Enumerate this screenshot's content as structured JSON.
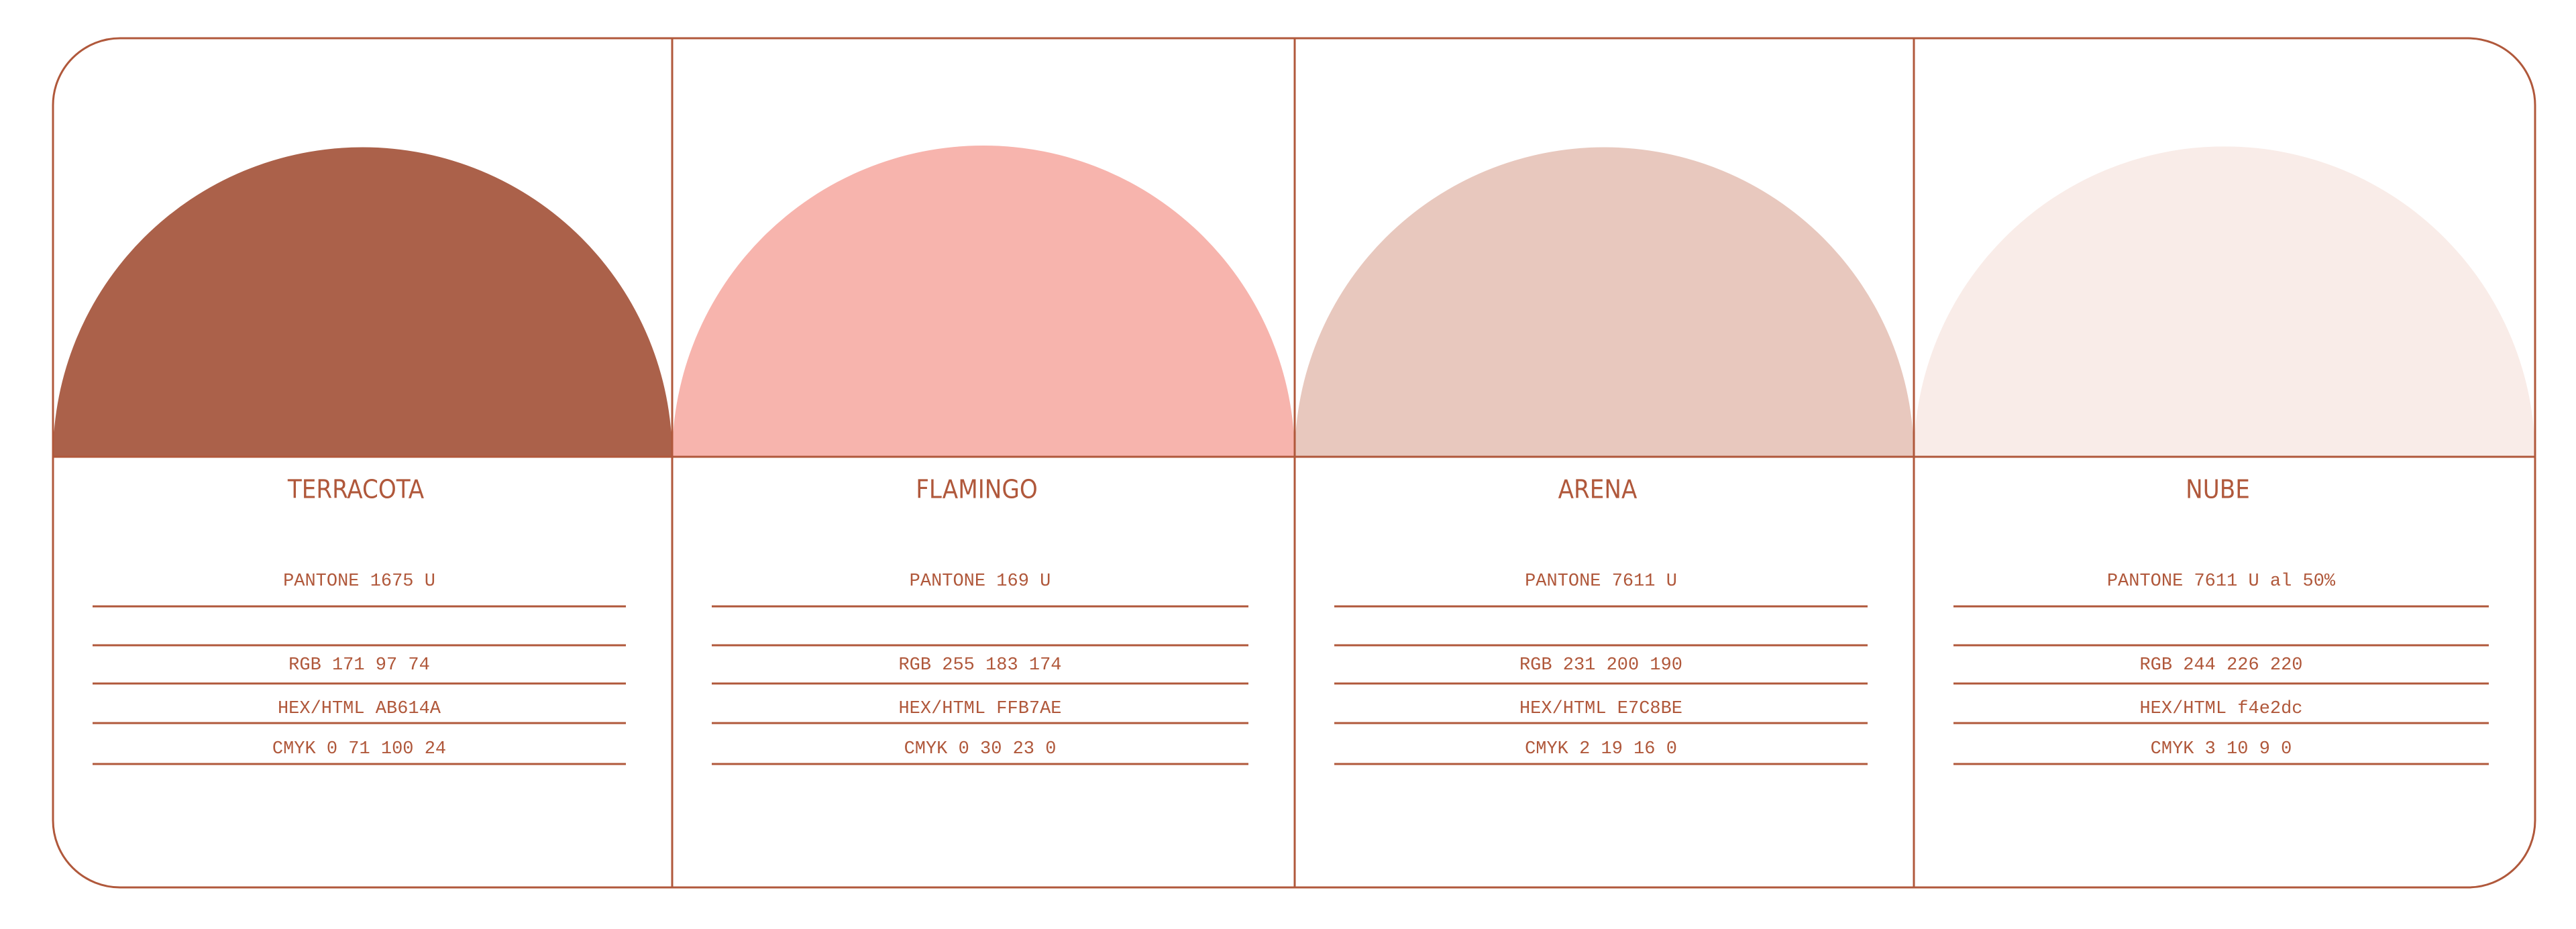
{
  "swatches": [
    {
      "name": "TERRACOTA",
      "pantone": "PANTONE 1675 U",
      "rgb": "RGB 171 97 74",
      "hex": "HEX/HTML AB614A",
      "cmyk": "CMYK 0 71 100 24",
      "color": "#ab614a"
    },
    {
      "name": "FLAMINGO",
      "pantone": "PANTONE 169 U",
      "rgb": "RGB 255 183 174",
      "hex": "HEX/HTML FFB7AE",
      "cmyk": "CMYK 0 30 23 0",
      "color": "#f7b4ad"
    },
    {
      "name": "ARENA",
      "pantone": "PANTONE 7611 U",
      "rgb": "RGB 231 200 190",
      "hex": "HEX/HTML E7C8BE",
      "cmyk": "CMYK 2 19 16 0",
      "color": "#e8c8be"
    },
    {
      "name": "NUBE",
      "pantone": "PANTONE 7611 U al 50%",
      "rgb": "RGB 244 226 220",
      "hex": "HEX/HTML f4e2dc",
      "cmyk": "CMYK 3 10 9 0",
      "color": "#f9ece8"
    }
  ]
}
